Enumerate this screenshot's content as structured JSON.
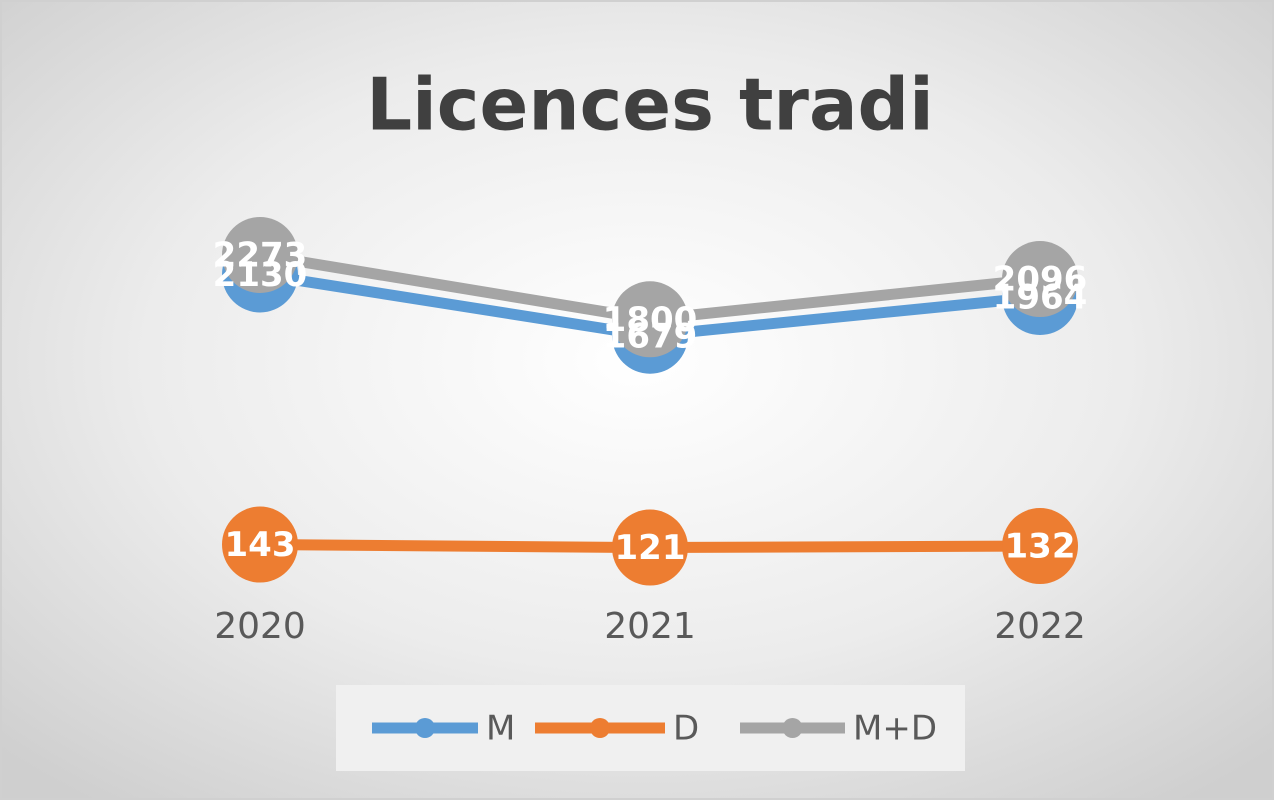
{
  "chart_data": {
    "type": "line",
    "title": "Licences tradi",
    "categories": [
      "2020",
      "2021",
      "2022"
    ],
    "series": [
      {
        "name": "M",
        "color": "#5b9bd5",
        "values": [
          2130,
          1679,
          1964
        ]
      },
      {
        "name": "D",
        "color": "#ed7d31",
        "values": [
          143,
          121,
          132
        ]
      },
      {
        "name": "M+D",
        "color": "#a5a5a5",
        "values": [
          2273,
          1800,
          2096
        ]
      }
    ]
  }
}
